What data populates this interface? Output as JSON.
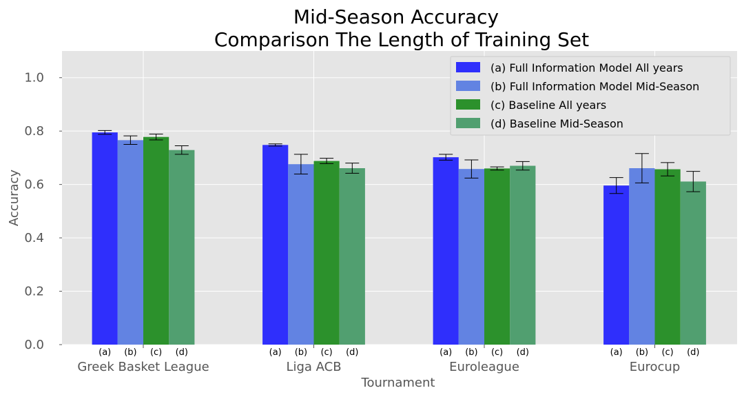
{
  "chart_data": {
    "type": "bar",
    "title": [
      "Mid-Season Accuracy",
      "Comparison The Length of Training Set"
    ],
    "xlabel": "Tournament",
    "ylabel": "Accuracy",
    "ylim": [
      0,
      1.1
    ],
    "yticks": [
      0.0,
      0.2,
      0.4,
      0.6,
      0.8,
      1.0
    ],
    "ytick_labels": [
      "0.0",
      "0.2",
      "0.4",
      "0.6",
      "0.8",
      "1.0"
    ],
    "categories": [
      "Greek Basket League",
      "Liga ACB",
      "Euroleague",
      "Eurocup"
    ],
    "sub_labels": [
      "(a)",
      "(b)",
      "(c)",
      "(d)"
    ],
    "grid": true,
    "legend_position": "top-right",
    "series": [
      {
        "name": "(a) Full Information Model All years",
        "color": "#2f2ffc",
        "values": [
          0.795,
          0.748,
          0.702,
          0.596
        ],
        "errors": [
          0.007,
          0.004,
          0.011,
          0.03
        ]
      },
      {
        "name": "(b) Full Information Model Mid-Season",
        "color": "#6283e2",
        "values": [
          0.766,
          0.676,
          0.658,
          0.661
        ],
        "errors": [
          0.016,
          0.037,
          0.034,
          0.055
        ]
      },
      {
        "name": "(c) Baseline All years",
        "color": "#2c912c",
        "values": [
          0.778,
          0.688,
          0.66,
          0.657
        ],
        "errors": [
          0.011,
          0.01,
          0.006,
          0.025
        ]
      },
      {
        "name": "(d) Baseline Mid-Season",
        "color": "#519f70",
        "values": [
          0.729,
          0.661,
          0.67,
          0.611
        ],
        "errors": [
          0.016,
          0.019,
          0.016,
          0.038
        ]
      }
    ]
  }
}
